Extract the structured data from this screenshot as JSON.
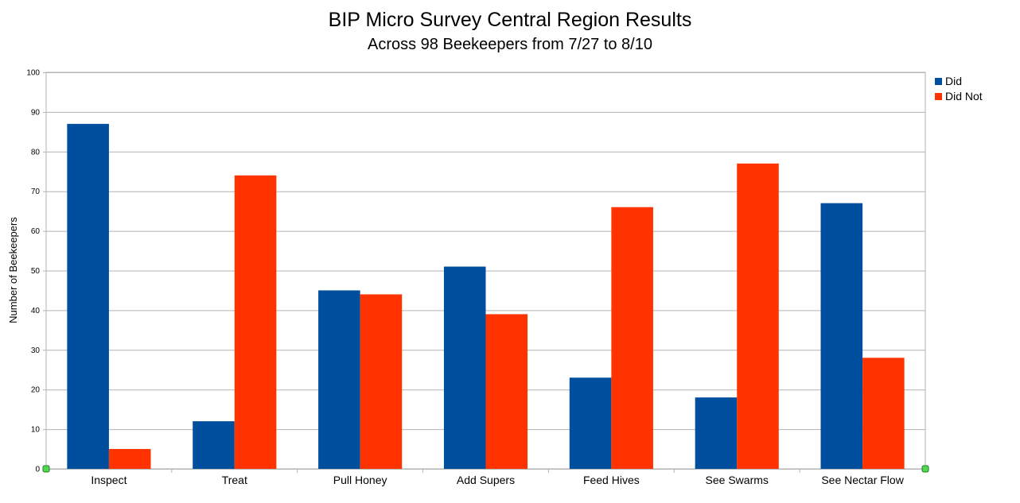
{
  "chart_data": {
    "type": "bar",
    "title": "BIP Micro Survey Central Region Results",
    "subtitle": "Across 98 Beekeepers from 7/27 to 8/10",
    "xlabel": "",
    "ylabel": "Number of Beekeepers",
    "ylim": [
      0,
      100
    ],
    "yticks": [
      0,
      10,
      20,
      30,
      40,
      50,
      60,
      70,
      80,
      90,
      100
    ],
    "grid": true,
    "legend_position": "right",
    "categories": [
      "Inspect",
      "Treat",
      "Pull Honey",
      "Add Supers",
      "Feed Hives",
      "See Swarms",
      "See Nectar Flow"
    ],
    "series": [
      {
        "name": "Did",
        "color": "#004f9f",
        "values": [
          87,
          12,
          45,
          51,
          23,
          18,
          67
        ]
      },
      {
        "name": "Did Not",
        "color": "#ff3300",
        "values": [
          5,
          74,
          44,
          39,
          66,
          77,
          28
        ]
      }
    ]
  }
}
